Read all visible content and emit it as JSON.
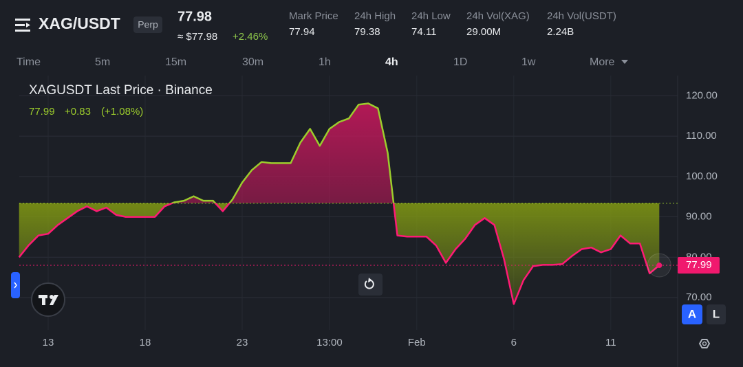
{
  "header": {
    "symbol": "XAG/USDT",
    "badge": "Perp",
    "price": "77.98",
    "usd_price": "≈ $77.98",
    "change": "+2.46%",
    "stats": [
      {
        "label": "Mark Price",
        "value": "77.94"
      },
      {
        "label": "24h High",
        "value": "79.38"
      },
      {
        "label": "24h Low",
        "value": "74.11"
      },
      {
        "label": "24h Vol(XAG)",
        "value": "29.00M"
      },
      {
        "label": "24h Vol(USDT)",
        "value": "2.24B"
      }
    ]
  },
  "timeframes": {
    "items": [
      "Time",
      "5m",
      "15m",
      "30m",
      "1h",
      "4h",
      "1D",
      "1w",
      "More"
    ],
    "active": "4h"
  },
  "buttons": {
    "auto": "A",
    "log": "L"
  },
  "chart_data": {
    "type": "baseline",
    "title": "XAGUSDT Last Price · Binance",
    "legend": {
      "last": "77.99",
      "change": "+0.83",
      "change_pct": "(+1.08%)"
    },
    "last_value_label": "77.99",
    "baseline": 93.4,
    "colors": {
      "above_line": "#9ccc2c",
      "above_fill": "#c2185b",
      "below_line": "#ff1a75",
      "below_fill": "#7d9414",
      "legend": "#9ccc2c",
      "last_marker": "#f0196e"
    },
    "grid": true,
    "categories": [
      null,
      null,
      null,
      "13",
      null,
      null,
      null,
      null,
      null,
      null,
      null,
      null,
      null,
      "18",
      null,
      null,
      null,
      null,
      null,
      null,
      null,
      null,
      null,
      "23",
      null,
      null,
      null,
      null,
      null,
      null,
      null,
      null,
      "13:00",
      null,
      null,
      null,
      null,
      null,
      null,
      null,
      null,
      "Feb",
      null,
      null,
      null,
      null,
      null,
      null,
      null,
      null,
      null,
      "6",
      null,
      null,
      null,
      null,
      null,
      null,
      null,
      null,
      null,
      "11",
      null,
      null,
      null,
      null,
      null
    ],
    "values": [
      80,
      83,
      85.4,
      85.8,
      88,
      89.7,
      91.4,
      92.6,
      91.4,
      92.3,
      90.5,
      90,
      90,
      90,
      90,
      92.6,
      93.6,
      94,
      95.1,
      94,
      94,
      91.4,
      94.3,
      98.5,
      101.6,
      103.6,
      103.3,
      103.3,
      103.3,
      108.4,
      111.8,
      107.6,
      111.8,
      113.5,
      114.4,
      117.8,
      118.1,
      116.9,
      105.9,
      85.4,
      85.1,
      85.1,
      85.1,
      82.9,
      78.6,
      82,
      84.6,
      88,
      89.7,
      88,
      79.5,
      68.4,
      74.3,
      77.8,
      78.1,
      78.1,
      78.3,
      80.3,
      82,
      82.4,
      81.2,
      82,
      85.4,
      83.4,
      83.4,
      76,
      78
    ],
    "ylim": [
      62,
      125
    ],
    "yticks": [
      {
        "value": 70,
        "label": "70.00"
      },
      {
        "value": 80,
        "label": "80.00"
      },
      {
        "value": 90,
        "label": "90.00"
      },
      {
        "value": 100,
        "label": "100.00"
      },
      {
        "value": 110,
        "label": "110.00"
      },
      {
        "value": 120,
        "label": "120.00"
      }
    ]
  }
}
